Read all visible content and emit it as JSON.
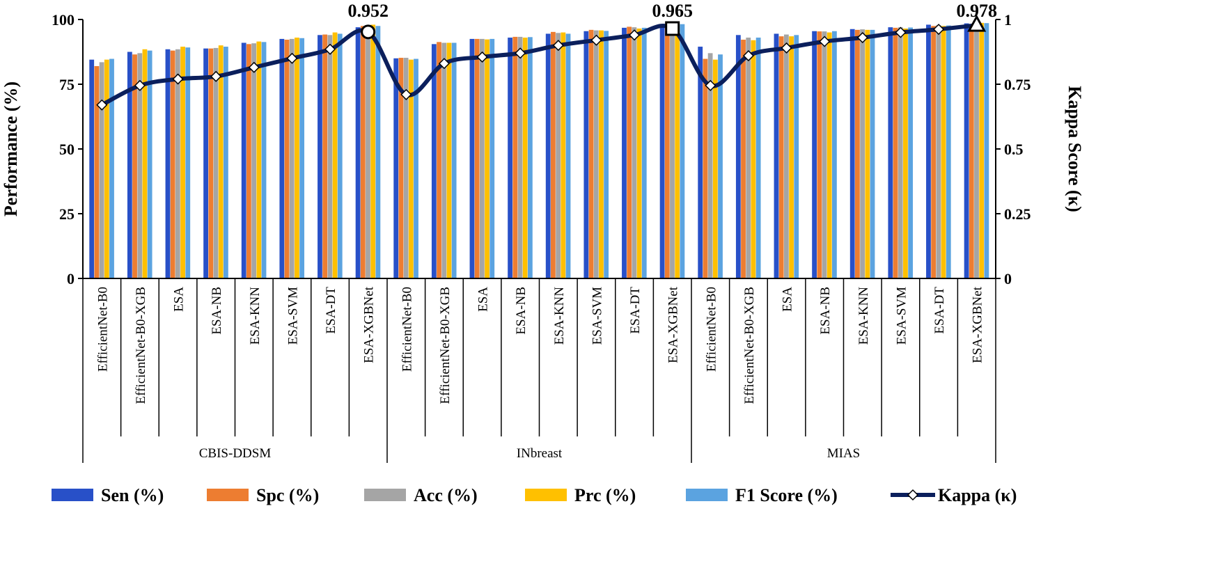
{
  "chart_data": {
    "type": "bar",
    "groups": [
      {
        "name": "CBIS-DDSM",
        "categories": [
          "EfficientNet-B0",
          "EfficientNet-B0-XGB",
          "ESA",
          "ESA-NB",
          "ESA-KNN",
          "ESA-SVM",
          "ESA-DT",
          "ESA-XGBNet"
        ]
      },
      {
        "name": "INbreast",
        "categories": [
          "EfficientNet-B0",
          "EfficientNet-B0-XGB",
          "ESA",
          "ESA-NB",
          "ESA-KNN",
          "ESA-SVM",
          "ESA-DT",
          "ESA-XGBNet"
        ]
      },
      {
        "name": "MIAS",
        "categories": [
          "EfficientNet-B0",
          "EfficientNet-B0-XGB",
          "ESA",
          "ESA-NB",
          "ESA-KNN",
          "ESA-SVM",
          "ESA-DT",
          "ESA-XGBNet"
        ]
      }
    ],
    "series": [
      {
        "name": "Sen (%)",
        "color": "#2850c8",
        "values": [
          84.5,
          87.5,
          88.5,
          88.8,
          91.0,
          92.5,
          94.0,
          97.0,
          85.0,
          90.5,
          92.5,
          93.0,
          94.5,
          95.5,
          96.8,
          97.5,
          89.5,
          94.0,
          94.5,
          95.5,
          96.3,
          97.0,
          98.0,
          98.5
        ]
      },
      {
        "name": "Spc (%)",
        "color": "#ed7d31",
        "values": [
          82.0,
          86.5,
          88.0,
          88.8,
          90.5,
          92.2,
          94.2,
          97.5,
          85.2,
          91.3,
          92.5,
          93.3,
          95.2,
          96.0,
          97.2,
          98.0,
          84.8,
          92.2,
          93.5,
          95.4,
          96.0,
          96.8,
          97.5,
          98.3
        ]
      },
      {
        "name": "Acc (%)",
        "color": "#a5a5a5",
        "values": [
          83.5,
          87.0,
          88.5,
          89.0,
          90.8,
          92.5,
          94.0,
          97.3,
          85.2,
          91.0,
          92.5,
          93.3,
          94.8,
          95.8,
          97.0,
          97.8,
          87.0,
          93.0,
          94.2,
          95.4,
          96.2,
          97.0,
          97.8,
          98.4
        ]
      },
      {
        "name": "Prc  (%)",
        "color": "#ffc000",
        "values": [
          84.5,
          88.5,
          89.5,
          90.0,
          91.5,
          93.0,
          95.0,
          98.0,
          84.5,
          91.0,
          92.3,
          93.0,
          95.0,
          95.8,
          96.5,
          98.2,
          84.5,
          92.0,
          93.5,
          95.0,
          96.0,
          96.5,
          97.5,
          98.7
        ]
      },
      {
        "name": "F1 Score (%)",
        "color": "#5ba3e0",
        "values": [
          84.8,
          88.0,
          89.2,
          89.5,
          91.3,
          92.8,
          94.5,
          97.5,
          84.8,
          91.0,
          92.5,
          93.2,
          94.5,
          95.6,
          96.8,
          98.2,
          86.5,
          93.0,
          94.0,
          95.5,
          96.0,
          96.9,
          97.7,
          98.6
        ]
      }
    ],
    "line_series": {
      "name": "Kappa (κ)",
      "color": "#0b1f5c",
      "values": [
        0.67,
        0.745,
        0.77,
        0.78,
        0.815,
        0.85,
        0.885,
        0.952,
        0.71,
        0.83,
        0.855,
        0.87,
        0.9,
        0.92,
        0.94,
        0.965,
        0.745,
        0.86,
        0.89,
        0.915,
        0.93,
        0.95,
        0.962,
        0.978
      ]
    },
    "annotations": [
      {
        "text": "0.952",
        "index": 7,
        "marker": "circle"
      },
      {
        "text": "0.965",
        "index": 15,
        "marker": "square"
      },
      {
        "text": "0.978",
        "index": 23,
        "marker": "triangle"
      }
    ],
    "ylabel": "Performance (%)",
    "ylabel_right": "Kappa Score (κ)",
    "ylim": [
      0,
      100
    ],
    "ylim_right": [
      0,
      1
    ],
    "yticks": [
      "0",
      "25",
      "50",
      "75",
      "100"
    ],
    "yticks_right": [
      "0",
      "0.25",
      "0.5",
      "0.75",
      "1"
    ],
    "grid": false,
    "legend_position": "bottom"
  }
}
